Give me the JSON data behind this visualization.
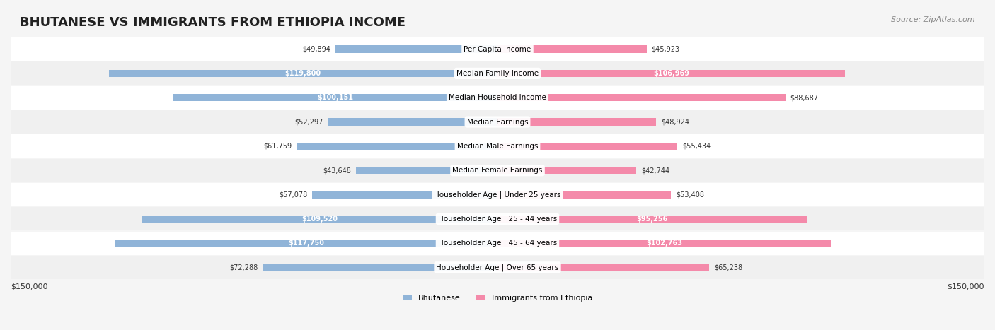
{
  "title": "BHUTANESE VS IMMIGRANTS FROM ETHIOPIA INCOME",
  "source": "Source: ZipAtlas.com",
  "categories": [
    "Per Capita Income",
    "Median Family Income",
    "Median Household Income",
    "Median Earnings",
    "Median Male Earnings",
    "Median Female Earnings",
    "Householder Age | Under 25 years",
    "Householder Age | 25 - 44 years",
    "Householder Age | 45 - 64 years",
    "Householder Age | Over 65 years"
  ],
  "bhutanese": [
    49894,
    119800,
    100151,
    52297,
    61759,
    43648,
    57078,
    109520,
    117750,
    72288
  ],
  "ethiopia": [
    45923,
    106969,
    88687,
    48924,
    55434,
    42744,
    53408,
    95256,
    102763,
    65238
  ],
  "bhutanese_labels": [
    "$49,894",
    "$119,800",
    "$100,151",
    "$52,297",
    "$61,759",
    "$43,648",
    "$57,078",
    "$109,520",
    "$117,750",
    "$72,288"
  ],
  "ethiopia_labels": [
    "$45,923",
    "$106,969",
    "$88,687",
    "$48,924",
    "$55,434",
    "$42,744",
    "$53,408",
    "$95,256",
    "$102,763",
    "$65,238"
  ],
  "blue_color": "#90b4d8",
  "pink_color": "#f48aaa",
  "blue_dark": "#6699cc",
  "pink_dark": "#f06090",
  "bg_color": "#f5f5f5",
  "row_bg": "#ffffff",
  "row_alt_bg": "#f0f0f0",
  "max_value": 150000,
  "label_threshold": 90000
}
